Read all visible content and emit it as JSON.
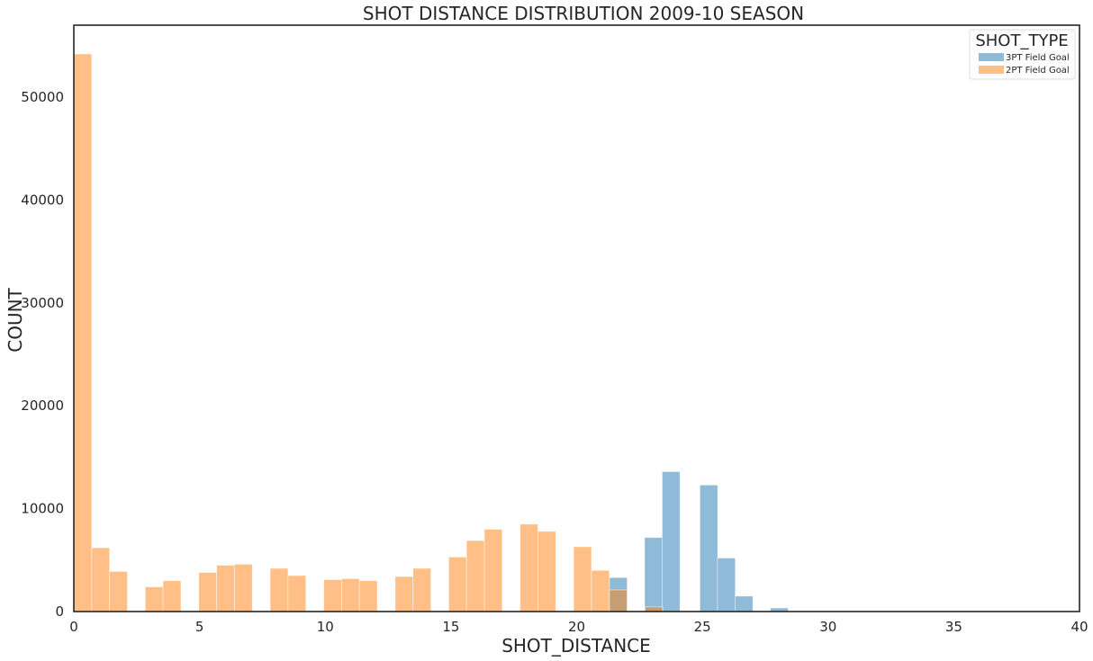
{
  "chart_data": {
    "type": "bar",
    "title": "SHOT DISTANCE DISTRIBUTION 2009-10 SEASON",
    "xlabel": "SHOT_DISTANCE",
    "ylabel": "COUNT",
    "xlim": [
      0,
      40
    ],
    "ylim": [
      0,
      57000
    ],
    "bin_width": 0.71,
    "x_ticks": [
      0,
      5,
      10,
      15,
      20,
      25,
      30,
      35,
      40
    ],
    "x_tick_labels": [
      "0",
      "5",
      "10",
      "15",
      "20",
      "25",
      "30",
      "35",
      "40"
    ],
    "y_ticks": [
      0,
      10000,
      20000,
      30000,
      40000,
      50000
    ],
    "y_tick_labels": [
      "0",
      "10000",
      "20000",
      "30000",
      "40000",
      "50000"
    ],
    "grid": false,
    "legend": {
      "title": "SHOT_TYPE",
      "position": "top-right"
    },
    "series": [
      {
        "name": "3PT Field Goal",
        "color": "#1f77b4",
        "opacity": 0.5,
        "bins": [
          {
            "x": 21.3,
            "value": 3300
          },
          {
            "x": 22.7,
            "value": 7200
          },
          {
            "x": 23.4,
            "value": 13600
          },
          {
            "x": 24.9,
            "value": 12300
          },
          {
            "x": 25.6,
            "value": 5200
          },
          {
            "x": 26.3,
            "value": 1500
          },
          {
            "x": 27.7,
            "value": 350
          }
        ]
      },
      {
        "name": "2PT Field Goal",
        "color": "#ff7f0e",
        "opacity": 0.5,
        "bins": [
          {
            "x": 0.0,
            "value": 54200
          },
          {
            "x": 0.71,
            "value": 6200
          },
          {
            "x": 1.42,
            "value": 3900
          },
          {
            "x": 2.84,
            "value": 2400
          },
          {
            "x": 3.55,
            "value": 3000
          },
          {
            "x": 4.97,
            "value": 3800
          },
          {
            "x": 5.68,
            "value": 4500
          },
          {
            "x": 6.39,
            "value": 4600
          },
          {
            "x": 7.81,
            "value": 4200
          },
          {
            "x": 8.52,
            "value": 3500
          },
          {
            "x": 9.94,
            "value": 3100
          },
          {
            "x": 10.65,
            "value": 3200
          },
          {
            "x": 11.36,
            "value": 3000
          },
          {
            "x": 12.78,
            "value": 3400
          },
          {
            "x": 13.49,
            "value": 4200
          },
          {
            "x": 14.91,
            "value": 5300
          },
          {
            "x": 15.62,
            "value": 6900
          },
          {
            "x": 16.33,
            "value": 8000
          },
          {
            "x": 17.75,
            "value": 8500
          },
          {
            "x": 18.46,
            "value": 7800
          },
          {
            "x": 19.88,
            "value": 6300
          },
          {
            "x": 20.59,
            "value": 4000
          },
          {
            "x": 21.3,
            "value": 2100
          },
          {
            "x": 22.72,
            "value": 450
          }
        ]
      }
    ]
  }
}
